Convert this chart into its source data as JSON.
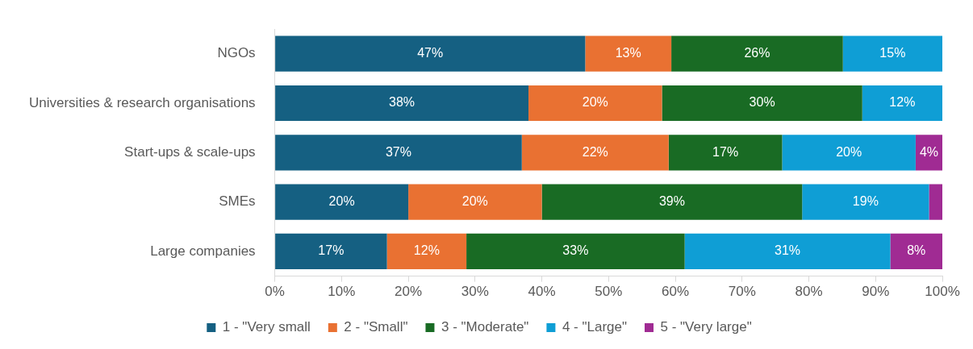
{
  "chart_data": {
    "type": "bar",
    "orientation": "horizontal",
    "stacked": true,
    "categories": [
      "NGOs",
      "Universities & research organisations",
      "Start-ups & scale-ups",
      "SMEs",
      "Large companies"
    ],
    "series": [
      {
        "name": "1 - \"Very small",
        "color": "#156082",
        "values": [
          46.5,
          38,
          37,
          20,
          16.8
        ],
        "value_labels": [
          "47%",
          "38%",
          "37%",
          "20%",
          "17%"
        ]
      },
      {
        "name": "2 - \"Small\"",
        "color": "#e97132",
        "values": [
          12.9,
          20,
          22,
          20,
          11.9
        ],
        "value_labels": [
          "13%",
          "20%",
          "22%",
          "20%",
          "12%"
        ]
      },
      {
        "name": "3 - \"Moderate\"",
        "color": "#196b24",
        "values": [
          25.7,
          30,
          17,
          39,
          32.7
        ],
        "value_labels": [
          "26%",
          "30%",
          "17%",
          "39%",
          "33%"
        ]
      },
      {
        "name": "4 - \"Large\"",
        "color": "#0f9ed5",
        "values": [
          14.9,
          12,
          20,
          19,
          30.8
        ],
        "value_labels": [
          "15%",
          "12%",
          "20%",
          "19%",
          "31%"
        ]
      },
      {
        "name": "5 - \"Very large\"",
        "color": "#a02b93",
        "values": [
          null,
          null,
          4,
          2,
          7.8
        ],
        "value_labels": [
          null,
          null,
          "4%",
          null,
          "8%"
        ]
      }
    ],
    "xlim": [
      0,
      100
    ],
    "xticks": [
      {
        "value": 0,
        "label": "0%"
      },
      {
        "value": 10,
        "label": "10%"
      },
      {
        "value": 20,
        "label": "20%"
      },
      {
        "value": 30,
        "label": "30%"
      },
      {
        "value": 40,
        "label": "40%"
      },
      {
        "value": 50,
        "label": "50%"
      },
      {
        "value": 60,
        "label": "60%"
      },
      {
        "value": 70,
        "label": "70%"
      },
      {
        "value": 80,
        "label": "80%"
      },
      {
        "value": 90,
        "label": "90%"
      },
      {
        "value": 100,
        "label": "100%"
      }
    ],
    "grid": false,
    "legend": "bottom"
  }
}
